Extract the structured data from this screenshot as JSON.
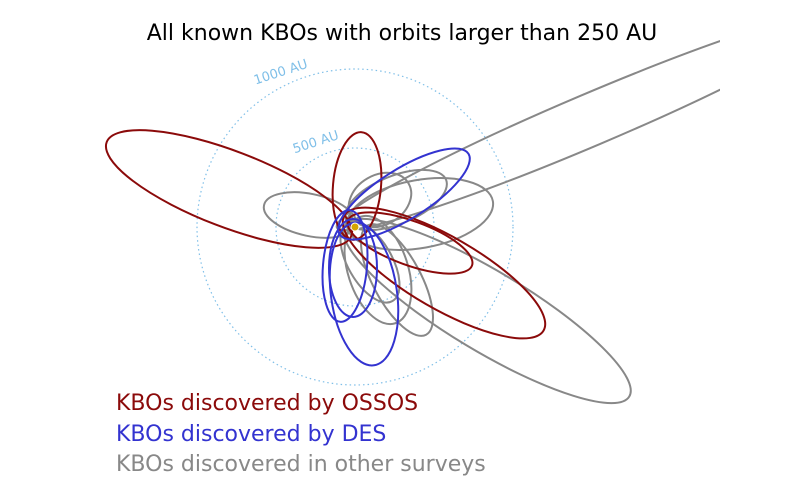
{
  "title": "All known KBOs with orbits larger than 250 AU",
  "rings": [
    {
      "label": "1000 AU",
      "color": "#7fbfe8"
    },
    {
      "label": "500 AU",
      "color": "#7fbfe8"
    }
  ],
  "legend": [
    {
      "label": "KBOs discovered by OSSOS",
      "color": "#8b0a0a"
    },
    {
      "label": "KBOs discovered by DES",
      "color": "#3333d0"
    },
    {
      "label": "KBOs discovered in other surveys",
      "color": "#888888"
    }
  ]
}
